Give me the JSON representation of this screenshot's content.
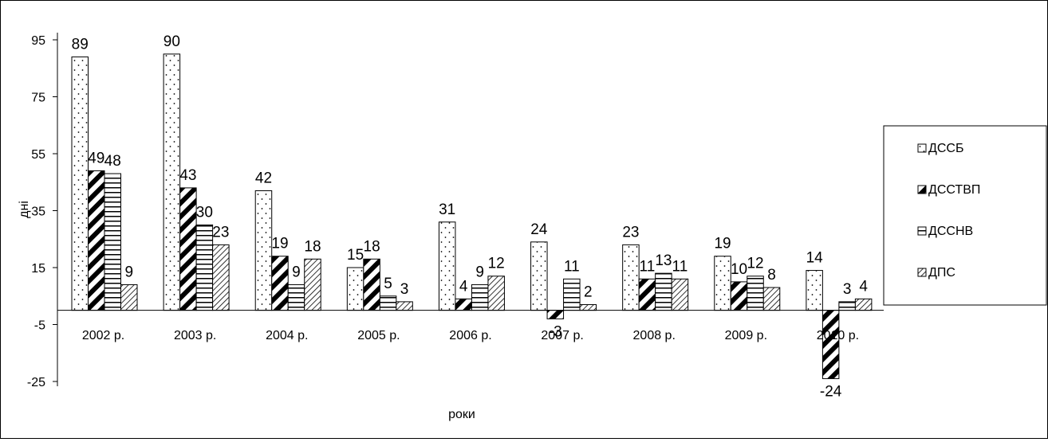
{
  "chart_data": {
    "type": "bar",
    "title": "",
    "xlabel": "роки",
    "ylabel": "дні",
    "ylim": [
      -25,
      95
    ],
    "yticks": [
      95,
      75,
      55,
      35,
      15,
      -5,
      -25
    ],
    "yticks_labels": [
      "95",
      "75",
      "55",
      "35",
      "15",
      "-5",
      "-25"
    ],
    "categories": [
      "2002 р.",
      "2003 р.",
      "2004 р.",
      "2005 р.",
      "2006 р.",
      "2007 р.",
      "2008 р.",
      "2009 р.",
      "2010 р."
    ],
    "series": [
      {
        "name": "ДССБ",
        "values": [
          89,
          90,
          42,
          15,
          31,
          24,
          23,
          19,
          14
        ],
        "labels": [
          "89",
          "90",
          "42",
          "15",
          "31",
          "24",
          "23",
          "19",
          "14"
        ],
        "pattern": "dots"
      },
      {
        "name": "ДССТВП",
        "values": [
          49,
          43,
          19,
          18,
          4,
          -3,
          11,
          10,
          -24
        ],
        "labels": [
          "49",
          "43",
          "19",
          "18",
          "4",
          "-3",
          "11",
          "10",
          "-24"
        ],
        "pattern": "diagonal"
      },
      {
        "name": "ДССНВ",
        "values": [
          48,
          30,
          9,
          5,
          9,
          11,
          13,
          12,
          3
        ],
        "labels": [
          "48",
          "30",
          "9",
          "5",
          "9",
          "11",
          "13",
          "12",
          "3"
        ],
        "pattern": "horizontal"
      },
      {
        "name": "ДПС",
        "values": [
          9,
          23,
          18,
          3,
          12,
          2,
          11,
          8,
          4
        ],
        "labels": [
          "9",
          "23",
          "18",
          "3",
          "12",
          "2",
          "11",
          "8",
          "4"
        ],
        "pattern": "hatch"
      }
    ],
    "grid": false,
    "legend_position": "right"
  }
}
